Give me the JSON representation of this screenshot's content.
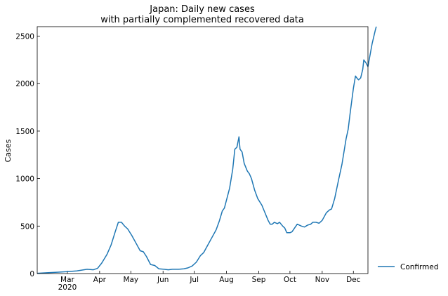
{
  "chart_data": {
    "type": "line",
    "title": "Japan: Daily new cases\nwith partially complemented recovered data",
    "xlabel": "",
    "ylabel": "Cases",
    "ylim": [
      0,
      2600
    ],
    "yticks": [
      0,
      500,
      1000,
      1500,
      2000,
      2500
    ],
    "xlim": [
      "2020-02-01",
      "2020-12-15"
    ],
    "xticks": [
      {
        "date": "2020-03-01",
        "label": "Mar",
        "sublabel": "2020"
      },
      {
        "date": "2020-04-01",
        "label": "Apr"
      },
      {
        "date": "2020-05-01",
        "label": "May"
      },
      {
        "date": "2020-06-01",
        "label": "Jun"
      },
      {
        "date": "2020-07-01",
        "label": "Jul"
      },
      {
        "date": "2020-08-01",
        "label": "Aug"
      },
      {
        "date": "2020-09-01",
        "label": "Sep"
      },
      {
        "date": "2020-10-01",
        "label": "Oct"
      },
      {
        "date": "2020-11-01",
        "label": "Nov"
      },
      {
        "date": "2020-12-01",
        "label": "Dec"
      }
    ],
    "legend_position": "right",
    "series": [
      {
        "name": "Confirmed",
        "color": "#1f77b4",
        "points": [
          [
            "2020-02-01",
            3
          ],
          [
            "2020-02-10",
            8
          ],
          [
            "2020-02-20",
            14
          ],
          [
            "2020-03-01",
            20
          ],
          [
            "2020-03-10",
            28
          ],
          [
            "2020-03-20",
            45
          ],
          [
            "2020-03-26",
            40
          ],
          [
            "2020-03-30",
            55
          ],
          [
            "2020-04-03",
            110
          ],
          [
            "2020-04-08",
            200
          ],
          [
            "2020-04-12",
            300
          ],
          [
            "2020-04-16",
            440
          ],
          [
            "2020-04-19",
            540
          ],
          [
            "2020-04-22",
            540
          ],
          [
            "2020-04-25",
            500
          ],
          [
            "2020-04-28",
            470
          ],
          [
            "2020-05-02",
            400
          ],
          [
            "2020-05-06",
            320
          ],
          [
            "2020-05-10",
            240
          ],
          [
            "2020-05-13",
            230
          ],
          [
            "2020-05-16",
            180
          ],
          [
            "2020-05-20",
            95
          ],
          [
            "2020-05-24",
            85
          ],
          [
            "2020-05-28",
            50
          ],
          [
            "2020-06-02",
            45
          ],
          [
            "2020-06-06",
            40
          ],
          [
            "2020-06-10",
            45
          ],
          [
            "2020-06-16",
            45
          ],
          [
            "2020-06-21",
            50
          ],
          [
            "2020-06-25",
            60
          ],
          [
            "2020-06-29",
            80
          ],
          [
            "2020-07-03",
            120
          ],
          [
            "2020-07-07",
            190
          ],
          [
            "2020-07-10",
            220
          ],
          [
            "2020-07-14",
            300
          ],
          [
            "2020-07-18",
            380
          ],
          [
            "2020-07-22",
            460
          ],
          [
            "2020-07-25",
            550
          ],
          [
            "2020-07-28",
            660
          ],
          [
            "2020-07-30",
            690
          ],
          [
            "2020-08-04",
            900
          ],
          [
            "2020-08-07",
            1100
          ],
          [
            "2020-08-09",
            1310
          ],
          [
            "2020-08-11",
            1330
          ],
          [
            "2020-08-13",
            1440
          ],
          [
            "2020-08-14",
            1310
          ],
          [
            "2020-08-16",
            1280
          ],
          [
            "2020-08-18",
            1160
          ],
          [
            "2020-08-21",
            1080
          ],
          [
            "2020-08-23",
            1050
          ],
          [
            "2020-08-25",
            1000
          ],
          [
            "2020-08-28",
            880
          ],
          [
            "2020-08-31",
            790
          ],
          [
            "2020-09-04",
            720
          ],
          [
            "2020-09-07",
            640
          ],
          [
            "2020-09-10",
            560
          ],
          [
            "2020-09-12",
            520
          ],
          [
            "2020-09-14",
            520
          ],
          [
            "2020-09-16",
            540
          ],
          [
            "2020-09-19",
            525
          ],
          [
            "2020-09-21",
            540
          ],
          [
            "2020-09-24",
            500
          ],
          [
            "2020-09-26",
            480
          ],
          [
            "2020-09-28",
            430
          ],
          [
            "2020-10-01",
            430
          ],
          [
            "2020-10-03",
            440
          ],
          [
            "2020-10-08",
            520
          ],
          [
            "2020-10-12",
            500
          ],
          [
            "2020-10-15",
            490
          ],
          [
            "2020-10-18",
            510
          ],
          [
            "2020-10-21",
            520
          ],
          [
            "2020-10-23",
            540
          ],
          [
            "2020-10-26",
            540
          ],
          [
            "2020-10-29",
            530
          ],
          [
            "2020-11-01",
            560
          ],
          [
            "2020-11-05",
            640
          ],
          [
            "2020-11-08",
            670
          ],
          [
            "2020-11-10",
            680
          ],
          [
            "2020-11-13",
            790
          ],
          [
            "2020-11-17",
            1000
          ],
          [
            "2020-11-20",
            1150
          ],
          [
            "2020-11-24",
            1420
          ],
          [
            "2020-11-26",
            1520
          ],
          [
            "2020-11-28",
            1700
          ],
          [
            "2020-12-01",
            1950
          ],
          [
            "2020-12-03",
            2080
          ],
          [
            "2020-12-05",
            2050
          ],
          [
            "2020-12-06",
            2040
          ],
          [
            "2020-12-08",
            2060
          ],
          [
            "2020-12-10",
            2150
          ],
          [
            "2020-12-11",
            2250
          ],
          [
            "2020-12-13",
            2220
          ],
          [
            "2020-12-15",
            2180
          ],
          [
            "2020-12-17",
            2300
          ],
          [
            "2020-12-19",
            2420
          ],
          [
            "2020-12-22",
            2560
          ],
          [
            "2020-12-23",
            2600
          ]
        ]
      }
    ]
  }
}
